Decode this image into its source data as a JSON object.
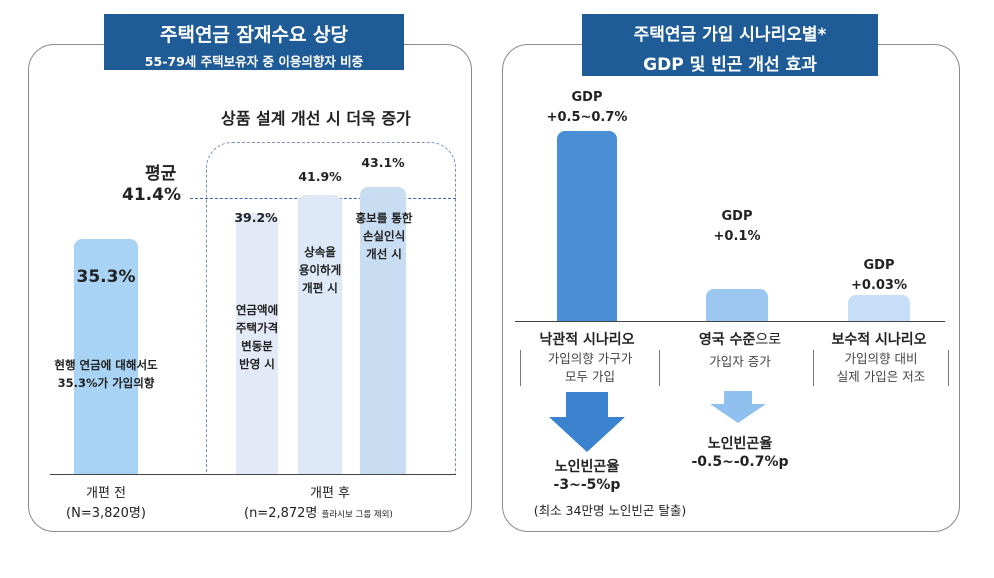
{
  "left_panel": {
    "banner_title": "주택연금 잠재수요 상당",
    "banner_subtitle": "55-79세 주택보유자 중 이용의향자 비중",
    "design_header": "상품 설계 개선 시 더욱 증가",
    "average_label": "평균",
    "average_value": "41.4%",
    "before_value_label": "35.3%",
    "before_text": "현행 연금에 대해서도\n35.3%가 가입의향",
    "bar1_value_label": "39.2%",
    "bar1_text": "연금액에\n주택가격\n변동분\n반영 시",
    "bar2_value_label": "41.9%",
    "bar2_text": "상속을\n용이하게\n개편 시",
    "bar3_value_label": "43.1%",
    "bar3_text": "홍보를 통한\n손실인식\n개선 시",
    "xlabel_before": "개편 전",
    "n_before": "(N=3,820명)",
    "xlabel_after": "개편 후",
    "n_after": "(n=2,872명",
    "n_after_small": "플라시보 그룹 제외)"
  },
  "right_panel": {
    "banner_line1": "주택연금 가입 시나리오별*",
    "banner_line2": "GDP 및 빈곤 개선 효과",
    "s1_gdp": "GDP",
    "s1_value": "+0.5~0.7%",
    "s1_name": "낙관적 시나리오",
    "s1_desc": "가입의향 가구가\n모두 가입",
    "s2_gdp": "GDP",
    "s2_value": "+0.1%",
    "s2_name_bold": "영국 수준",
    "s2_name_rest": "으로",
    "s2_desc": "가입자 증가",
    "s3_gdp": "GDP",
    "s3_value": "+0.03%",
    "s3_name": "보수적 시나리오",
    "s3_desc": "가입의향 대비\n실제 가입은 저조",
    "poverty1_label": "노인빈곤율",
    "poverty1_value": "-3~-5%p",
    "poverty1_note": "(최소 34만명 노인빈곤 탈출)",
    "poverty2_label": "노인빈곤율",
    "poverty2_value": "-0.5~-0.7%p"
  },
  "chart_data": [
    {
      "type": "bar",
      "title": "주택연금 잠재수요 상당",
      "subtitle": "55-79세 주택보유자 중 이용의향자 비중",
      "categories": [
        "개편 전",
        "연금액에 주택가격 변동분 반영 시",
        "상속을 용이하게 개편 시",
        "홍보를 통한 손실인식 개선 시"
      ],
      "values": [
        35.3,
        39.2,
        41.9,
        43.1
      ],
      "unit": "%",
      "average": 41.4,
      "colors": [
        "#a9d3f5",
        "#e3e9f7",
        "#dde9f7",
        "#c9ddf2"
      ]
    },
    {
      "type": "bar",
      "title": "주택연금 가입 시나리오별* GDP 및 빈곤 개선 효과",
      "categories": [
        "낙관적 시나리오",
        "영국 수준으로",
        "보수적 시나리오"
      ],
      "values": [
        0.6,
        0.1,
        0.03
      ],
      "value_labels": [
        "+0.5~0.7%",
        "+0.1%",
        "+0.03%"
      ],
      "unit": "GDP %",
      "colors": [
        "#4a8fd5",
        "#9cc7f0",
        "#c6def7"
      ]
    }
  ]
}
